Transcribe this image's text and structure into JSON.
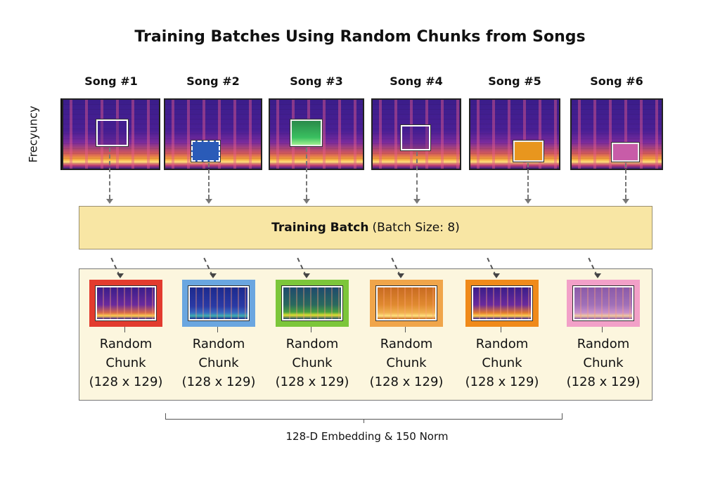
{
  "title": "Training Batches Using Random Chunks from Songs",
  "y_axis_label": "Frecyuncy",
  "songs": [
    {
      "label": "Song #1",
      "chunk_color": "#ffffff"
    },
    {
      "label": "Song #2",
      "chunk_color": "#2a5bb8"
    },
    {
      "label": "Song #3",
      "chunk_color": "#3fae4a"
    },
    {
      "label": "Song #4",
      "chunk_color": "#ffffff"
    },
    {
      "label": "Song #5",
      "chunk_color": "#e8961e"
    },
    {
      "label": "Song #6",
      "chunk_color": "#c85ca8"
    }
  ],
  "batch": {
    "bold": "Training Batch",
    "rest": "(Batch Size: 8)",
    "color": "#f8e6a4"
  },
  "chunks": [
    {
      "line1": "Random",
      "line2": "Chunk",
      "dims": "(128 x 129)",
      "border_color": "#e23b2e"
    },
    {
      "line1": "Random",
      "line2": "Chunk",
      "dims": "(128 x 129)",
      "border_color": "#6aa6e0"
    },
    {
      "line1": "Random",
      "line2": "Chunk",
      "dims": "(128 x 129)",
      "border_color": "#7cc63a"
    },
    {
      "line1": "Random",
      "line2": "Chunk",
      "dims": "(128 x 129)",
      "border_color": "#f0a54a"
    },
    {
      "line1": "Random",
      "line2": "Chunk",
      "dims": "(128 x 129)",
      "border_color": "#f08a1a"
    },
    {
      "line1": "Random",
      "line2": "Chunk",
      "dims": "(128 x 129)",
      "border_color": "#f2a0c8"
    }
  ],
  "footer": "128-D Embedding & 150 Norm"
}
